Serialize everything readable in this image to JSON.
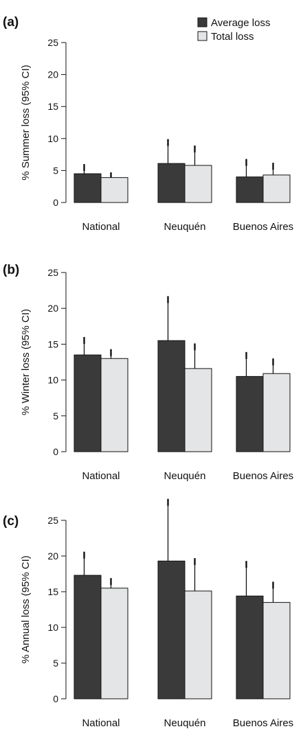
{
  "legend": [
    {
      "label": "Average loss",
      "color": "#3a3a3a"
    },
    {
      "label": "Total loss",
      "color": "#e4e5e7"
    }
  ],
  "chart_data": [
    {
      "type": "bar",
      "panel_label": "(a)",
      "ylabel": "% Summer loss (95% CI)",
      "ylim": [
        0,
        25
      ],
      "yticks": [
        0,
        5,
        10,
        15,
        20,
        25
      ],
      "categories": [
        "National",
        "Neuquén",
        "Buenos Aires"
      ],
      "series": [
        {
          "name": "Average loss",
          "values": [
            4.5,
            6.1,
            4.0
          ],
          "ci_upper": [
            6.0,
            9.9,
            6.8
          ]
        },
        {
          "name": "Total loss",
          "values": [
            3.9,
            5.8,
            4.3
          ],
          "ci_upper": [
            4.7,
            8.9,
            6.2
          ]
        }
      ]
    },
    {
      "type": "bar",
      "panel_label": "(b)",
      "ylabel": "% Winter loss (95% CI)",
      "ylim": [
        0,
        25
      ],
      "yticks": [
        0,
        5,
        10,
        15,
        20,
        25
      ],
      "categories": [
        "National",
        "Neuquén",
        "Buenos Aires"
      ],
      "series": [
        {
          "name": "Average loss",
          "values": [
            13.5,
            15.5,
            10.5
          ],
          "ci_upper": [
            16.0,
            21.7,
            13.9
          ]
        },
        {
          "name": "Total loss",
          "values": [
            13.0,
            11.6,
            10.9
          ],
          "ci_upper": [
            14.3,
            15.1,
            13.0
          ]
        }
      ]
    },
    {
      "type": "bar",
      "panel_label": "(c)",
      "ylabel": "% Annual loss (95% CI)",
      "ylim": [
        0,
        25
      ],
      "yticks": [
        0,
        5,
        10,
        15,
        20,
        25
      ],
      "categories": [
        "National",
        "Neuquén",
        "Buenos Aires"
      ],
      "series": [
        {
          "name": "Average loss",
          "values": [
            17.3,
            19.3,
            14.4
          ],
          "ci_upper": [
            20.6,
            28.0,
            19.3
          ]
        },
        {
          "name": "Total loss",
          "values": [
            15.5,
            15.1,
            13.5
          ],
          "ci_upper": [
            16.9,
            19.7,
            16.4
          ]
        }
      ]
    }
  ]
}
